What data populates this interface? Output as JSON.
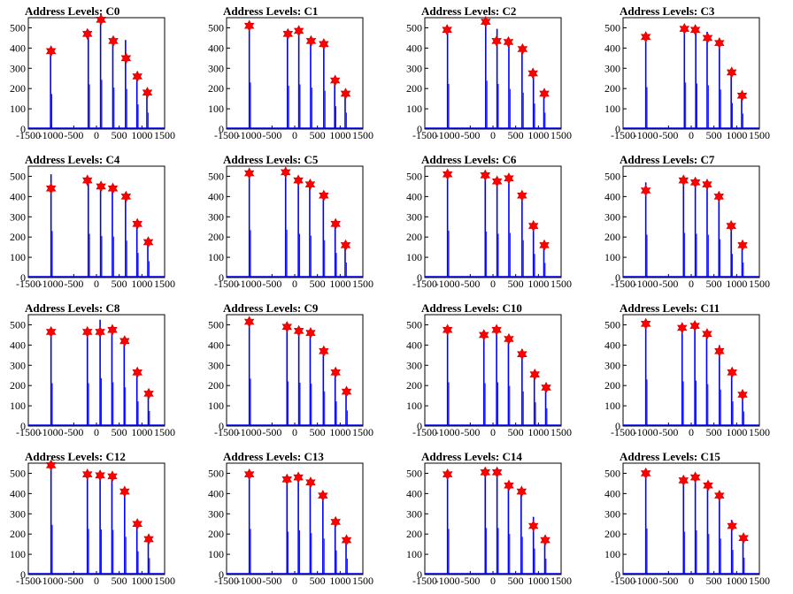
{
  "figure": {
    "colors": {
      "line": "#0000ff",
      "marker": "#ff0000",
      "axis": "#000000"
    },
    "xlim": [
      -1500,
      1500
    ],
    "ylim": [
      0,
      550
    ],
    "xticks": [
      -1500,
      -1000,
      -500,
      0,
      500,
      1000,
      1500
    ],
    "xtick_labels": [
      "-1500",
      "-1000",
      "-500",
      "0",
      "500",
      "1000",
      "1500"
    ],
    "yticks": [
      0,
      100,
      200,
      300,
      400,
      500
    ],
    "ytick_labels": [
      "0",
      "100",
      "200",
      "300",
      "400",
      "500"
    ]
  },
  "chart_data": [
    {
      "type": "bar",
      "title": "Address Levels: C0",
      "peaks_x": [
        -1000,
        -200,
        100,
        370,
        650,
        900,
        1120
      ],
      "peaks_y": [
        385,
        470,
        540,
        435,
        350,
        260,
        180
      ],
      "tall_lines": [
        -1010,
        -180,
        90,
        360,
        640,
        890,
        1110
      ],
      "tall_y": [
        385,
        490,
        540,
        455,
        440,
        270,
        180
      ]
    },
    {
      "type": "bar",
      "title": "Address Levels: C1",
      "peaks_x": [
        -1000,
        -150,
        90,
        360,
        640,
        890,
        1120
      ],
      "peaks_y": [
        510,
        470,
        485,
        435,
        420,
        240,
        175
      ],
      "tall_lines": [
        -1000,
        -160,
        90,
        350,
        640,
        880,
        1110
      ],
      "tall_y": [
        510,
        475,
        490,
        455,
        420,
        250,
        180
      ]
    },
    {
      "type": "bar",
      "title": "Address Levels: C2",
      "peaks_x": [
        -1010,
        -160,
        80,
        340,
        650,
        880,
        1130
      ],
      "peaks_y": [
        490,
        530,
        435,
        430,
        395,
        275,
        175
      ],
      "tall_lines": [
        -1000,
        -160,
        90,
        350,
        640,
        890,
        1120
      ],
      "tall_y": [
        495,
        530,
        495,
        440,
        400,
        280,
        180
      ]
    },
    {
      "type": "bar",
      "title": "Address Levels: C3",
      "peaks_x": [
        -1000,
        -150,
        90,
        360,
        620,
        890,
        1120
      ],
      "peaks_y": [
        455,
        495,
        490,
        450,
        425,
        280,
        165
      ],
      "tall_lines": [
        -1000,
        -150,
        100,
        350,
        620,
        880,
        1110
      ],
      "tall_y": [
        460,
        510,
        500,
        480,
        435,
        285,
        170
      ]
    },
    {
      "type": "bar",
      "title": "Address Levels: C4",
      "peaks_x": [
        -1000,
        -200,
        100,
        360,
        650,
        900,
        1140
      ],
      "peaks_y": [
        440,
        480,
        450,
        440,
        400,
        265,
        175
      ],
      "tall_lines": [
        -1000,
        -180,
        90,
        350,
        640,
        890,
        1130
      ],
      "tall_y": [
        510,
        480,
        455,
        450,
        405,
        270,
        180
      ]
    },
    {
      "type": "bar",
      "title": "Address Levels: C5",
      "peaks_x": [
        -1000,
        -200,
        80,
        340,
        640,
        900,
        1120
      ],
      "peaks_y": [
        515,
        520,
        480,
        460,
        405,
        265,
        160
      ],
      "tall_lines": [
        -1000,
        -200,
        80,
        330,
        630,
        890,
        1110
      ],
      "tall_y": [
        520,
        525,
        480,
        460,
        410,
        270,
        165
      ]
    },
    {
      "type": "bar",
      "title": "Address Levels: C6",
      "peaks_x": [
        -1000,
        -170,
        90,
        350,
        640,
        890,
        1130
      ],
      "peaks_y": [
        510,
        505,
        475,
        490,
        405,
        255,
        160
      ],
      "tall_lines": [
        -1000,
        -170,
        90,
        350,
        640,
        890,
        1120
      ],
      "tall_y": [
        515,
        505,
        480,
        490,
        410,
        260,
        160
      ]
    },
    {
      "type": "bar",
      "title": "Address Levels: C7",
      "peaks_x": [
        -1000,
        -170,
        90,
        350,
        610,
        880,
        1130
      ],
      "peaks_y": [
        430,
        480,
        470,
        460,
        400,
        255,
        160
      ],
      "tall_lines": [
        -1000,
        -170,
        90,
        350,
        610,
        880,
        1120
      ],
      "tall_y": [
        470,
        490,
        480,
        470,
        420,
        260,
        165
      ]
    },
    {
      "type": "bar",
      "title": "Address Levels: C8",
      "peaks_x": [
        -1000,
        -200,
        80,
        350,
        620,
        900,
        1150
      ],
      "peaks_y": [
        465,
        465,
        465,
        475,
        420,
        265,
        160
      ],
      "tall_lines": [
        -1000,
        -200,
        80,
        340,
        610,
        890,
        1140
      ],
      "tall_y": [
        470,
        470,
        525,
        480,
        425,
        270,
        165
      ]
    },
    {
      "type": "bar",
      "title": "Address Levels: C9",
      "peaks_x": [
        -1000,
        -170,
        90,
        350,
        640,
        900,
        1140
      ],
      "peaks_y": [
        515,
        490,
        470,
        460,
        370,
        265,
        170
      ],
      "tall_lines": [
        -1000,
        -170,
        90,
        340,
        630,
        890,
        1130
      ],
      "tall_y": [
        520,
        490,
        475,
        465,
        380,
        270,
        170
      ]
    },
    {
      "type": "bar",
      "title": "Address Levels: C10",
      "peaks_x": [
        -1000,
        -200,
        80,
        350,
        640,
        920,
        1170
      ],
      "peaks_y": [
        475,
        450,
        475,
        430,
        355,
        255,
        190
      ],
      "tall_lines": [
        -1000,
        -200,
        80,
        340,
        640,
        910,
        1160
      ],
      "tall_y": [
        480,
        470,
        480,
        440,
        380,
        260,
        195
      ]
    },
    {
      "type": "bar",
      "title": "Address Levels: C11",
      "peaks_x": [
        -1000,
        -200,
        80,
        350,
        620,
        900,
        1130
      ],
      "peaks_y": [
        505,
        485,
        495,
        455,
        370,
        265,
        155
      ],
      "tall_lines": [
        -1000,
        -200,
        80,
        340,
        620,
        890,
        1130
      ],
      "tall_y": [
        510,
        490,
        500,
        460,
        400,
        270,
        160
      ]
    },
    {
      "type": "bar",
      "title": "Address Levels: C12",
      "peaks_x": [
        -1000,
        -200,
        80,
        350,
        620,
        900,
        1150
      ],
      "peaks_y": [
        540,
        495,
        490,
        485,
        410,
        250,
        175
      ],
      "tall_lines": [
        -1000,
        -200,
        80,
        340,
        620,
        890,
        1140
      ],
      "tall_y": [
        545,
        500,
        495,
        490,
        415,
        255,
        180
      ]
    },
    {
      "type": "bar",
      "title": "Address Levels: C13",
      "peaks_x": [
        -1000,
        -170,
        80,
        350,
        620,
        900,
        1140
      ],
      "peaks_y": [
        495,
        470,
        480,
        455,
        390,
        260,
        170
      ],
      "tall_lines": [
        -1000,
        -170,
        80,
        340,
        620,
        890,
        1130
      ],
      "tall_y": [
        500,
        470,
        485,
        455,
        395,
        265,
        175
      ]
    },
    {
      "type": "bar",
      "title": "Address Levels: C14",
      "peaks_x": [
        -1000,
        -170,
        90,
        350,
        630,
        890,
        1150
      ],
      "peaks_y": [
        495,
        505,
        505,
        440,
        410,
        240,
        170
      ],
      "tall_lines": [
        -1000,
        -170,
        90,
        340,
        620,
        890,
        1140
      ],
      "tall_y": [
        500,
        510,
        510,
        445,
        415,
        285,
        175
      ]
    },
    {
      "type": "bar",
      "title": "Address Levels: C15",
      "peaks_x": [
        -1000,
        -170,
        90,
        370,
        620,
        900,
        1150
      ],
      "peaks_y": [
        500,
        465,
        480,
        440,
        390,
        240,
        180
      ],
      "tall_lines": [
        -1000,
        -170,
        90,
        360,
        620,
        890,
        1140
      ],
      "tall_y": [
        505,
        470,
        485,
        445,
        395,
        270,
        185
      ]
    }
  ]
}
